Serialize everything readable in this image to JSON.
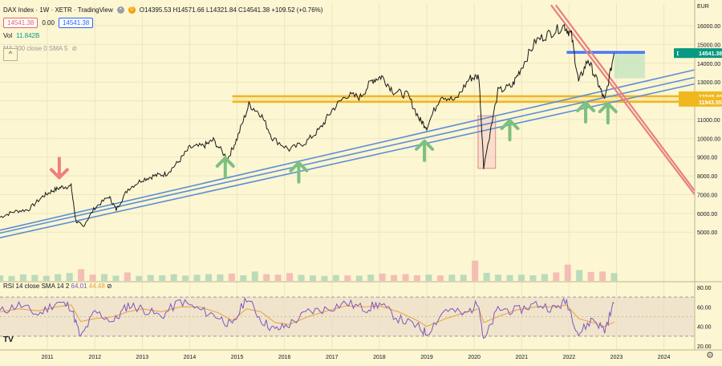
{
  "header": {
    "symbol": "DAX Index · 1W · XETR · TradingView",
    "ohlc": "O14395.53 H14571.66 L14321.84 C14541.38 +109.52 (+0.76%)",
    "bid": "14541.38",
    "spread": "0.00",
    "ask": "14541.38",
    "vol_label": "Vol",
    "vol_value": "11.842B",
    "ma_label": "MA 200 close 0 SMA 5"
  },
  "rsi_header": {
    "label": "RSI 14 close SMA 14 2",
    "rsi_value": "64.01",
    "sma_value": "44.48"
  },
  "branding": {
    "logo": "TV"
  },
  "colors": {
    "background": "#fcf6d2",
    "candle": "#1a1a1a",
    "channel": "#5b8fd6",
    "resistance": "#f0b820",
    "downtrend": "#e88080",
    "up_arrow": "#7dc07f",
    "down_arrow": "#ef7f7f",
    "rsi": "#7e57c2",
    "rsi_sma": "#e6a23c",
    "price_tag": "#089981",
    "volume_up": "#9fd0b0",
    "volume_down": "#f2a7a7"
  },
  "chart_data": {
    "type": "line",
    "title": "DAX Index · 1W · XETR",
    "xlabel": "",
    "ylabel": "",
    "currency": "EUR",
    "ylim": [
      2400,
      17200
    ],
    "xlim": [
      2010.0,
      2024.65
    ],
    "x_ticks": [
      "2011",
      "2012",
      "2013",
      "2014",
      "2015",
      "2016",
      "2017",
      "2018",
      "2019",
      "2020",
      "2021",
      "2022",
      "2023",
      "2024"
    ],
    "y_ticks": [
      5000,
      6000,
      7000,
      8000,
      9000,
      10000,
      11000,
      12000,
      13000,
      14000,
      15000,
      16000
    ],
    "series": [
      {
        "name": "DAX",
        "x": [
          2010.0,
          2010.3,
          2010.6,
          2010.9,
          2011.1,
          2011.3,
          2011.5,
          2011.6,
          2011.75,
          2012.0,
          2012.3,
          2012.45,
          2012.7,
          2013.0,
          2013.25,
          2013.5,
          2013.75,
          2014.0,
          2014.3,
          2014.5,
          2014.8,
          2015.0,
          2015.25,
          2015.5,
          2015.75,
          2016.1,
          2016.45,
          2016.75,
          2017.0,
          2017.3,
          2017.6,
          2017.85,
          2018.05,
          2018.3,
          2018.6,
          2018.85,
          2019.0,
          2019.3,
          2019.6,
          2019.9,
          2020.1,
          2020.2,
          2020.5,
          2020.8,
          2021.0,
          2021.3,
          2021.6,
          2021.9,
          2022.05,
          2022.2,
          2022.4,
          2022.6,
          2022.75,
          2022.95
        ],
        "values": [
          5800,
          6100,
          6200,
          6900,
          7200,
          7400,
          7450,
          5600,
          5300,
          6300,
          6900,
          6200,
          7300,
          7800,
          8000,
          8100,
          8700,
          9500,
          9600,
          9900,
          8900,
          10000,
          11800,
          11300,
          10000,
          9400,
          9800,
          10500,
          11500,
          12300,
          12200,
          13100,
          13300,
          12500,
          12300,
          11000,
          10600,
          12300,
          12000,
          13200,
          13300,
          8500,
          12500,
          12800,
          13800,
          15200,
          15600,
          16000,
          15500,
          13000,
          14200,
          13000,
          12000,
          14541
        ]
      }
    ],
    "volume_ylim": [
      0,
      8000
    ],
    "volume": [
      420,
      380,
      500,
      460,
      390,
      520,
      610,
      900,
      480,
      520,
      400,
      650,
      380,
      460,
      430,
      510,
      410,
      470,
      520,
      500,
      560,
      430,
      720,
      520,
      480,
      600,
      460,
      420,
      380,
      450,
      420,
      400,
      480,
      560,
      450,
      520,
      430,
      480,
      420,
      480,
      470,
      1550,
      620,
      480,
      450,
      480,
      430,
      520,
      650,
      1250,
      830,
      680,
      720,
      600
    ],
    "annotations": {
      "current_price_label": "14541.38",
      "resistance_labels": [
        "12245.40",
        "11943.55"
      ],
      "resistance_levels": [
        12245.4,
        11943.55
      ],
      "top_zone": [
        14540,
        14620
      ],
      "zone_start_x": 2021.95,
      "zone_end_x": 2023.6,
      "channel_lines": [
        {
          "x1": 2010.0,
          "y1": 5100,
          "x2": 2024.65,
          "y2": 13650
        },
        {
          "x1": 2010.0,
          "y1": 4950,
          "x2": 2024.65,
          "y2": 13250
        },
        {
          "x1": 2010.0,
          "y1": 4700,
          "x2": 2024.65,
          "y2": 12900
        }
      ],
      "downtrend_lines": [
        {
          "x1": 2021.62,
          "y1": 17100,
          "x2": 2024.65,
          "y2": 7000
        },
        {
          "x1": 2021.72,
          "y1": 17100,
          "x2": 2024.65,
          "y2": 7200
        }
      ],
      "up_arrows": [
        {
          "x": 2014.75,
          "y": 8350
        },
        {
          "x": 2016.3,
          "y": 8100
        },
        {
          "x": 2018.95,
          "y": 9250
        },
        {
          "x": 2020.75,
          "y": 10350
        },
        {
          "x": 2022.35,
          "y": 11300
        },
        {
          "x": 2022.82,
          "y": 11250
        }
      ],
      "down_arrow": {
        "x": 2011.25,
        "y": 8500
      },
      "covid_box": {
        "x1": 2020.08,
        "x2": 2020.45,
        "y1": 8400,
        "y2": 11200
      },
      "projection_box": {
        "x1": 2022.95,
        "x2": 2023.6,
        "y1": 13200,
        "y2": 14550
      }
    },
    "rsi": {
      "label": "RSI 14 close SMA 14 2",
      "ylim": [
        16,
        84
      ],
      "y_ticks": [
        20.0,
        40.0,
        60.0,
        80.0
      ],
      "band": [
        30,
        70
      ],
      "x": [
        2010.0,
        2010.4,
        2010.8,
        2011.2,
        2011.5,
        2011.7,
        2012.0,
        2012.4,
        2012.7,
        2013.0,
        2013.4,
        2013.8,
        2014.2,
        2014.6,
        2014.9,
        2015.2,
        2015.5,
        2015.8,
        2016.1,
        2016.5,
        2016.9,
        2017.3,
        2017.7,
        2018.0,
        2018.4,
        2018.8,
        2019.0,
        2019.4,
        2019.8,
        2020.1,
        2020.2,
        2020.5,
        2020.9,
        2021.3,
        2021.7,
        2021.95,
        2022.2,
        2022.5,
        2022.75,
        2022.95
      ],
      "values": [
        55,
        62,
        52,
        65,
        60,
        28,
        55,
        45,
        62,
        58,
        50,
        66,
        57,
        50,
        40,
        70,
        47,
        36,
        42,
        55,
        58,
        64,
        58,
        63,
        48,
        40,
        33,
        58,
        52,
        64,
        24,
        58,
        56,
        63,
        58,
        66,
        32,
        48,
        36,
        64.01
      ],
      "sma": [
        55,
        58,
        56,
        60,
        62,
        45,
        48,
        50,
        55,
        58,
        55,
        60,
        60,
        54,
        46,
        58,
        55,
        44,
        42,
        50,
        56,
        61,
        60,
        61,
        55,
        46,
        40,
        48,
        54,
        58,
        44,
        50,
        57,
        60,
        60,
        62,
        48,
        44,
        40,
        44.48
      ]
    }
  }
}
